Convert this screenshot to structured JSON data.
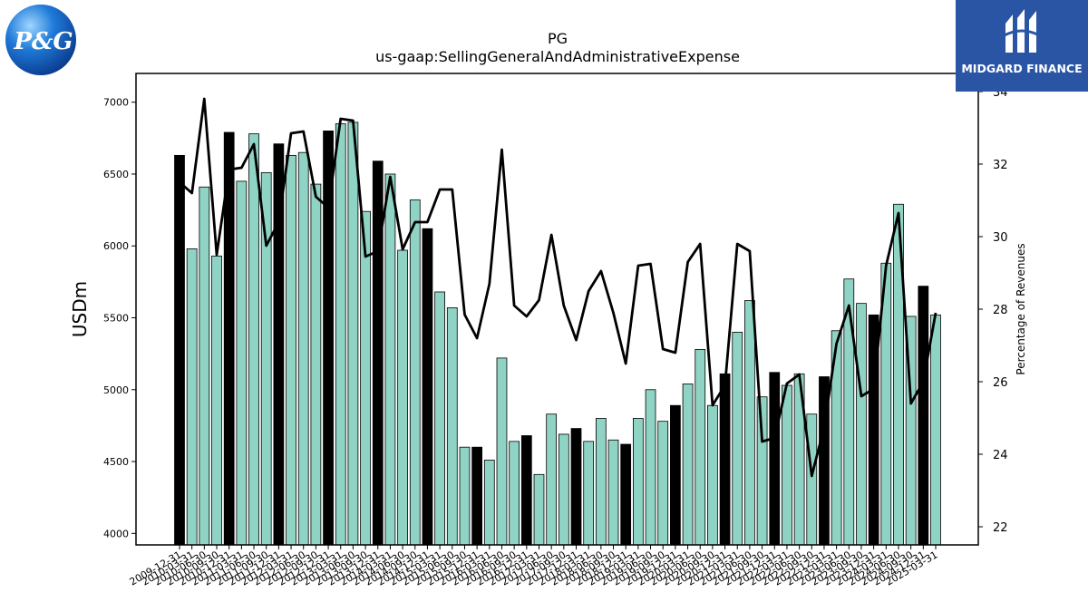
{
  "branding": {
    "left_logo_text": "P&G",
    "right_logo_text": "MIDGARD FINANCE"
  },
  "colors": {
    "annual_bar": "#000000",
    "quarter_bar": "#8fd3c4",
    "bar_edge": "#000000",
    "line": "#000000"
  },
  "chart_data": {
    "type": "bar",
    "title": "PG",
    "subtitle": "us-gaap:SellingGeneralAndAdministrativeExpense",
    "ylabel": "USDm",
    "y2label": "Percentage of Revenues",
    "ylim": [
      3920,
      7200
    ],
    "y2lim": [
      21.5,
      34.5
    ],
    "yticks": [
      4000,
      4500,
      5000,
      5500,
      6000,
      6500,
      7000
    ],
    "y2ticks": [
      22,
      24,
      26,
      28,
      30,
      32,
      34
    ],
    "x_labels": [
      "2009-12-31",
      "2010-03-31",
      "2010-06-30",
      "2010-09-30",
      "2010-12-31",
      "2011-03-31",
      "2011-06-30",
      "2011-09-30",
      "2011-12-31",
      "2012-03-31",
      "2012-06-30",
      "2012-09-30",
      "2012-12-31",
      "2013-03-31",
      "2013-06-30",
      "2013-09-30",
      "2013-12-31",
      "2014-03-31",
      "2014-06-30",
      "2014-09-30",
      "2014-12-31",
      "2015-03-31",
      "2015-06-30",
      "2015-09-30",
      "2015-12-31",
      "2016-03-31",
      "2016-06-30",
      "2016-09-30",
      "2016-12-31",
      "2017-03-31",
      "2017-06-30",
      "2017-09-30",
      "2017-12-31",
      "2018-03-31",
      "2018-06-30",
      "2018-09-30",
      "2018-12-31",
      "2019-03-31",
      "2019-06-30",
      "2019-09-30",
      "2019-12-31",
      "2020-03-31",
      "2020-06-30",
      "2020-09-30",
      "2020-12-31",
      "2021-03-31",
      "2021-06-30",
      "2021-09-30",
      "2021-12-31",
      "2022-03-31",
      "2022-06-30",
      "2022-09-30",
      "2022-12-31",
      "2023-03-31",
      "2023-06-30",
      "2023-09-30",
      "2023-12-31",
      "2024-03-31",
      "2024-06-30",
      "2024-09-30",
      "2024-12-31",
      "2025-03-31"
    ],
    "series": [
      {
        "values": [
          6630,
          5980,
          6410,
          5930,
          6790,
          6450,
          6780,
          6510,
          6710,
          6630,
          6650,
          6430,
          6800,
          6850,
          6860,
          6240,
          6590,
          6500,
          5970,
          6320,
          6120,
          5680,
          5570,
          4600,
          4600,
          4510,
          5220,
          4640,
          4680,
          4410,
          4830,
          4690,
          4730,
          4640,
          4800,
          4650,
          4620,
          4800,
          5000,
          4780,
          4890,
          5040,
          5280,
          4890,
          5110,
          5400,
          5620,
          4950,
          5120,
          5030,
          5110,
          4830,
          5090,
          5410,
          5770,
          5600,
          5520,
          5880,
          6290,
          5510,
          5720,
          5520
        ],
        "annual_flags": [
          1,
          0,
          0,
          0,
          1,
          0,
          0,
          0,
          1,
          0,
          0,
          0,
          1,
          0,
          0,
          0,
          1,
          0,
          0,
          0,
          1,
          0,
          0,
          0,
          1,
          0,
          0,
          0,
          1,
          0,
          0,
          0,
          1,
          0,
          0,
          0,
          1,
          0,
          0,
          0,
          1,
          0,
          0,
          0,
          1,
          0,
          0,
          0,
          1,
          0,
          0,
          0,
          1,
          0,
          0,
          0,
          1,
          0,
          0,
          0,
          1,
          0
        ]
      },
      {
        "axis": "right",
        "values": [
          31.5,
          31.2,
          33.8,
          29.5,
          31.85,
          31.9,
          32.55,
          29.75,
          30.4,
          32.85,
          32.9,
          31.1,
          30.8,
          33.25,
          33.2,
          29.45,
          29.6,
          31.65,
          29.65,
          30.4,
          30.4,
          31.3,
          31.3,
          27.85,
          27.2,
          28.7,
          32.4,
          28.1,
          27.8,
          28.25,
          30.05,
          28.1,
          27.15,
          28.5,
          29.05,
          27.9,
          26.5,
          29.2,
          29.25,
          26.9,
          26.8,
          29.3,
          29.8,
          25.35,
          25.9,
          29.8,
          29.6,
          24.35,
          24.45,
          25.95,
          26.2,
          23.4,
          24.75,
          27.05,
          28.1,
          25.6,
          25.8,
          29.2,
          30.65,
          25.4,
          26.0,
          27.9
        ]
      }
    ],
    "grid": false,
    "legend": "none"
  }
}
